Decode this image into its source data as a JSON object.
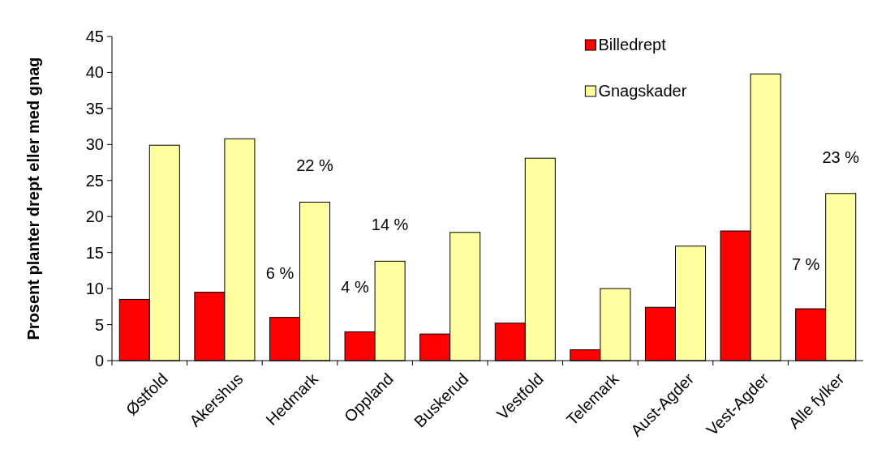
{
  "chart_data": {
    "type": "bar",
    "ylabel": "Prosent planter drept eller med gnag",
    "categories": [
      "Østfold",
      "Akershus",
      "Hedmark",
      "Oppland",
      "Buskerud",
      "Vestfold",
      "Telemark",
      "Aust-Agder",
      "Vest-Agder",
      "Alle fylker"
    ],
    "series": [
      {
        "name": "Billedrept",
        "color": "#ff0000",
        "values": [
          8.5,
          9.5,
          6,
          4,
          3.7,
          5.2,
          1.5,
          7.4,
          18,
          7.2
        ],
        "value_labels": [
          null,
          null,
          "6 %",
          "4 %",
          null,
          null,
          null,
          null,
          null,
          "7 %"
        ]
      },
      {
        "name": "Gnagskader",
        "color": "#ffffa0",
        "values": [
          29.9,
          30.8,
          22,
          13.8,
          17.8,
          28.1,
          10,
          15.9,
          39.8,
          23.2
        ],
        "value_labels": [
          null,
          null,
          "22 %",
          "14 %",
          null,
          null,
          null,
          null,
          null,
          "23 %"
        ]
      }
    ],
    "ylim": [
      0,
      45
    ],
    "yticks": [
      0,
      5,
      10,
      15,
      20,
      25,
      30,
      35,
      40,
      45
    ],
    "grid": false,
    "legend": "top right"
  }
}
